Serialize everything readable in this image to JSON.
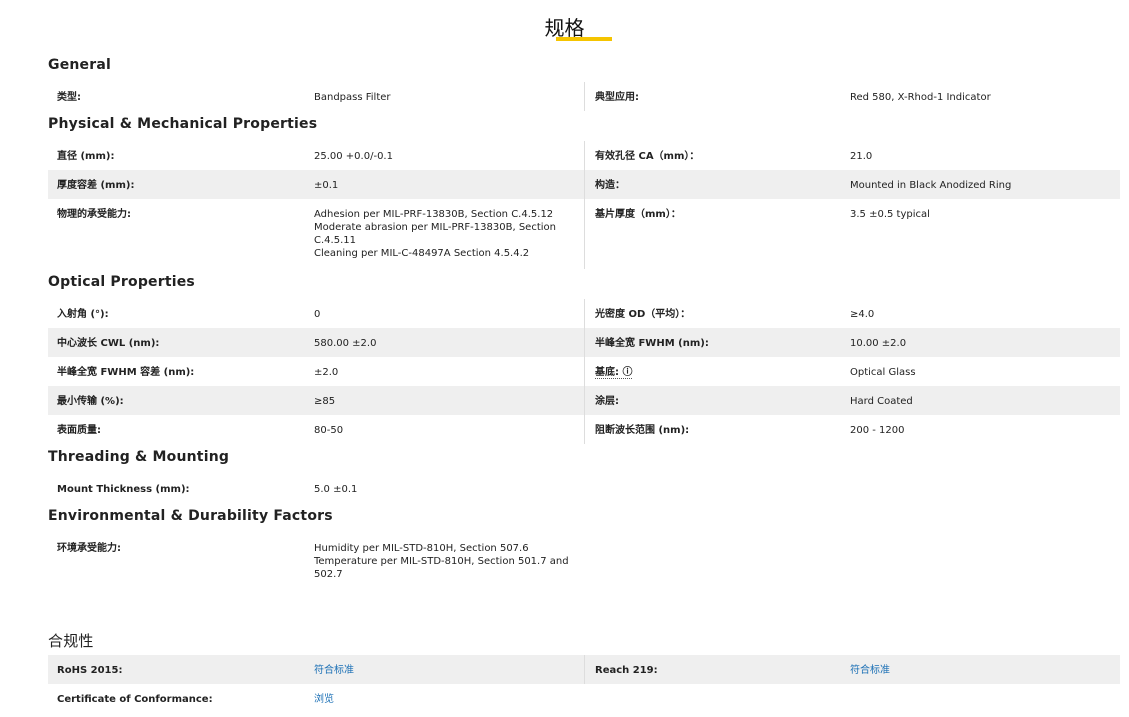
{
  "title": "规格",
  "accent": "#f5c400",
  "sections": [
    {
      "heading": "General",
      "rows": [
        {
          "l1": "类型:",
          "v1": "Bandpass Filter",
          "l2": "典型应用:",
          "v2": "Red 580, X-Rhod-1 Indicator",
          "gray": false
        }
      ]
    },
    {
      "heading": "Physical & Mechanical Properties",
      "rows": [
        {
          "l1": "直径 (mm):",
          "v1": "25.00 +0.0/-0.1",
          "l2": "有效孔径 CA（mm）：",
          "v2": "21.0",
          "gray": false
        },
        {
          "l1": "厚度容差 (mm):",
          "v1": "±0.1",
          "l2": "构造：",
          "v2": "Mounted in Black Anodized Ring",
          "gray": true
        },
        {
          "l1": "物理的承受能力:",
          "v1": "Adhesion per MIL-PRF-13830B, Section C.4.5.12\nModerate abrasion per MIL-PRF-13830B, Section C.4.5.11\nCleaning per MIL-C-48497A Section 4.5.4.2",
          "l2": "基片厚度（mm）：",
          "v2": "3.5 ±0.5 typical",
          "gray": false
        }
      ]
    },
    {
      "heading": "Optical Properties",
      "rows": [
        {
          "l1": "入射角 (°):",
          "v1": "0",
          "l2": "光密度 OD（平均）：",
          "v2": "≥4.0",
          "gray": false
        },
        {
          "l1": "中心波长 CWL (nm):",
          "v1": "580.00 ±2.0",
          "l2": "半峰全宽 FWHM (nm):",
          "v2": "10.00 ±2.0",
          "gray": true
        },
        {
          "l1": "半峰全宽 FWHM 容差 (nm):",
          "v1": "±2.0",
          "l2": "基底: ⓘ",
          "v2": "Optical Glass",
          "gray": false,
          "l2_info": true
        },
        {
          "l1": "最小传输 (%):",
          "v1": "≥85",
          "l2": "涂层:",
          "v2": "Hard Coated",
          "gray": true
        },
        {
          "l1": "表面质量:",
          "v1": "80-50",
          "l2": "阻断波长范围 (nm):",
          "v2": "200 - 1200",
          "gray": false
        }
      ]
    },
    {
      "heading": "Threading & Mounting",
      "rows": [
        {
          "l1": "Mount Thickness (mm):",
          "v1": "5.0 ±0.1",
          "gray": false
        }
      ]
    },
    {
      "heading": "Environmental & Durability Factors",
      "rows": [
        {
          "l1": "环境承受能力:",
          "v1": "Humidity per MIL-STD-810H, Section 507.6\nTemperature per MIL-STD-810H, Section 501.7 and 502.7",
          "gray": false
        }
      ]
    }
  ],
  "compliance": {
    "heading": "合规性",
    "rows": [
      {
        "l1": "RoHS 2015:",
        "v1": "符合标准",
        "l2": "Reach 219:",
        "v2": "符合标准",
        "gray": true
      },
      {
        "l1": "Certificate of Conformance:",
        "v1": "浏览",
        "gray": false
      }
    ]
  }
}
